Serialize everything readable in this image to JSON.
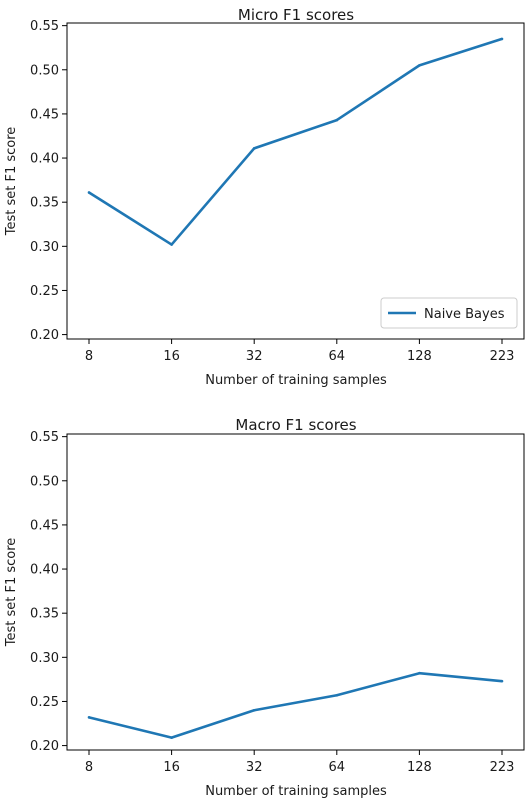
{
  "chart_data": [
    {
      "type": "line",
      "title": "Micro F1 scores",
      "xlabel": "Number of training samples",
      "ylabel": "Test set F1 score",
      "categories": [
        "8",
        "16",
        "32",
        "64",
        "128",
        "223"
      ],
      "ylim": [
        0.195,
        0.553
      ],
      "yticks": [
        "0.20",
        "0.25",
        "0.30",
        "0.35",
        "0.40",
        "0.45",
        "0.50",
        "0.55"
      ],
      "series": [
        {
          "name": "Naive Bayes",
          "color": "#1f77b4",
          "values": [
            0.361,
            0.302,
            0.411,
            0.443,
            0.505,
            0.535
          ]
        }
      ],
      "legend": {
        "position": "bottom-right"
      },
      "grid": false
    },
    {
      "type": "line",
      "title": "Macro F1 scores",
      "xlabel": "Number of training samples",
      "ylabel": "Test set F1 score",
      "categories": [
        "8",
        "16",
        "32",
        "64",
        "128",
        "223"
      ],
      "ylim": [
        0.195,
        0.553
      ],
      "yticks": [
        "0.20",
        "0.25",
        "0.30",
        "0.35",
        "0.40",
        "0.45",
        "0.50",
        "0.55"
      ],
      "series": [
        {
          "color": "#1f77b4",
          "values": [
            0.232,
            0.209,
            0.24,
            0.257,
            0.282,
            0.273
          ]
        }
      ],
      "grid": false
    }
  ]
}
